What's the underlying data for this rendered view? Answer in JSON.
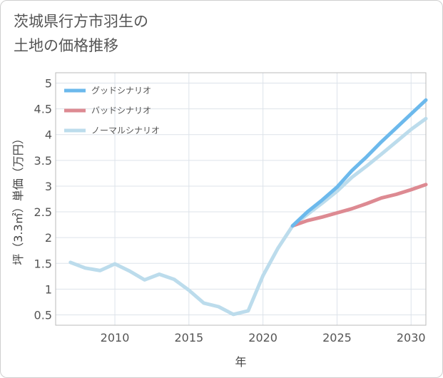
{
  "title_line1": "茨城県行方市羽生の",
  "title_line2": "土地の価格推移",
  "chart_data": {
    "type": "line",
    "title": "茨城県行方市羽生の土地の価格推移",
    "xlabel": "年",
    "ylabel": "坪（3.3㎡）単価（万円）",
    "xlim": [
      2006,
      2031
    ],
    "ylim": [
      0.3,
      5.2
    ],
    "xticks": [
      2010,
      2015,
      2020,
      2025,
      2030
    ],
    "yticks": [
      0.5,
      1,
      1.5,
      2,
      2.5,
      3,
      3.5,
      4,
      4.5,
      5
    ],
    "grid": true,
    "legend_position": "top-left",
    "series": [
      {
        "name": "グッドシナリオ",
        "color": "#6cb9ec",
        "x": [
          2022,
          2023,
          2024,
          2025,
          2026,
          2027,
          2028,
          2029,
          2030,
          2031
        ],
        "y": [
          2.23,
          2.5,
          2.73,
          2.98,
          3.3,
          3.57,
          3.86,
          4.13,
          4.4,
          4.67
        ]
      },
      {
        "name": "バッドシナリオ",
        "color": "#dd8a92",
        "x": [
          2022,
          2023,
          2024,
          2025,
          2026,
          2027,
          2028,
          2029,
          2030,
          2031
        ],
        "y": [
          2.23,
          2.33,
          2.4,
          2.48,
          2.56,
          2.66,
          2.77,
          2.84,
          2.93,
          3.03
        ]
      },
      {
        "name": "ノーマルシナリオ",
        "color": "#bcdcec",
        "x": [
          2007,
          2008,
          2009,
          2010,
          2011,
          2012,
          2013,
          2014,
          2015,
          2016,
          2017,
          2018,
          2019,
          2020,
          2021,
          2022,
          2023,
          2024,
          2025,
          2026,
          2027,
          2028,
          2029,
          2030,
          2031
        ],
        "y": [
          1.52,
          1.41,
          1.36,
          1.49,
          1.35,
          1.18,
          1.29,
          1.19,
          0.98,
          0.73,
          0.66,
          0.51,
          0.58,
          1.26,
          1.79,
          2.23,
          2.45,
          2.67,
          2.9,
          3.17,
          3.39,
          3.62,
          3.86,
          4.1,
          4.31
        ]
      }
    ]
  }
}
